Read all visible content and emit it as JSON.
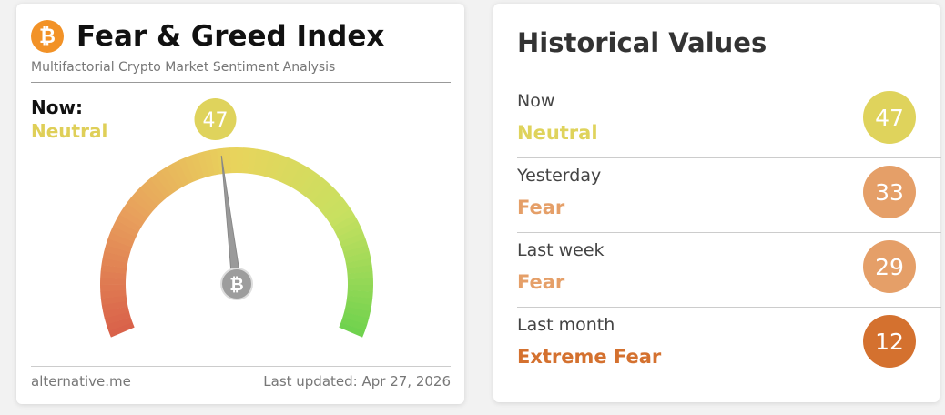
{
  "widget": {
    "title": "Fear & Greed Index",
    "subtitle": "Multifactorial Crypto Market Sentiment Analysis",
    "now_label": "Now:",
    "now_class": "Neutral",
    "gauge": {
      "value": 47,
      "range": [
        0,
        100
      ]
    },
    "source": "alternative.me",
    "updated": "Last updated: Apr 27, 2026"
  },
  "history": {
    "title": "Historical Values",
    "rows": [
      {
        "label": "Now",
        "classification": "Neutral",
        "value": "47",
        "color": "#dfd35c"
      },
      {
        "label": "Yesterday",
        "classification": "Fear",
        "value": "33",
        "color": "#e59f68"
      },
      {
        "label": "Last week",
        "classification": "Fear",
        "value": "29",
        "color": "#e59f68"
      },
      {
        "label": "Last month",
        "classification": "Extreme Fear",
        "value": "12",
        "color": "#d4712f"
      }
    ]
  }
}
